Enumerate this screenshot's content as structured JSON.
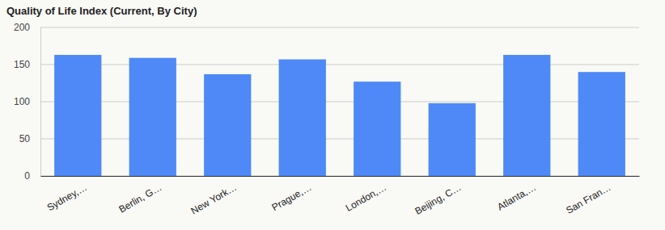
{
  "chart_data": {
    "type": "bar",
    "title": "Quality of Life Index (Current, By City)",
    "categories": [
      "Sydney,…",
      "Berlin, G…",
      "New York…",
      "Prague,…",
      "London,…",
      "Beijing, C…",
      "Atlanta,…",
      "San Fran…"
    ],
    "values": [
      163,
      159,
      137,
      157,
      127,
      98,
      163,
      140
    ],
    "color": "#4e89f7",
    "ylim": [
      0,
      200
    ],
    "yticks": [
      0,
      50,
      100,
      150,
      200
    ],
    "grid": true
  }
}
